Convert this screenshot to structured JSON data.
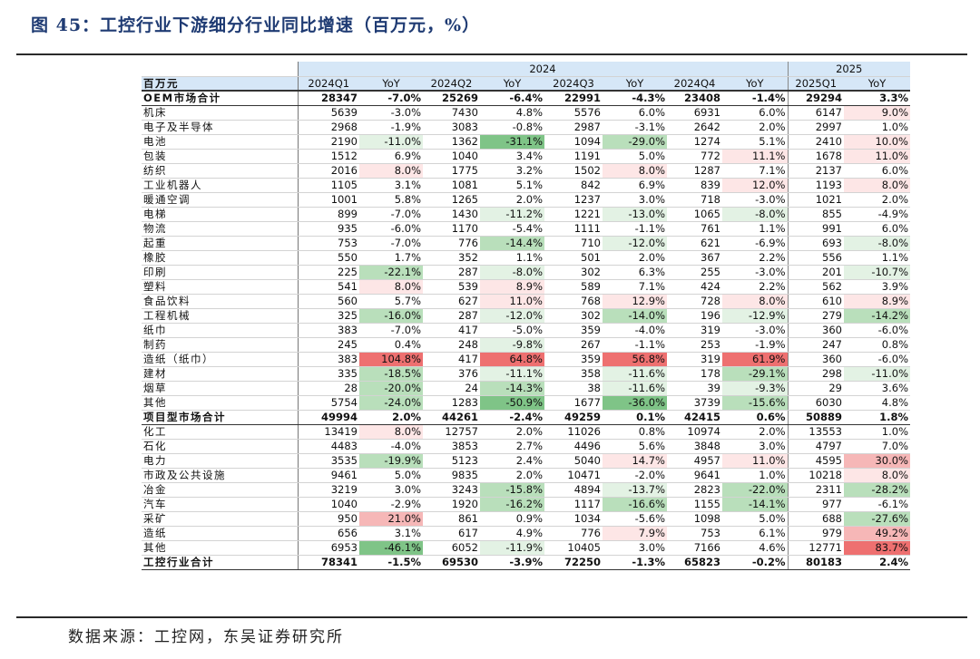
{
  "title": "图 45：工控行业下游细分行业同比增速（百万元，%）",
  "source": "数据来源：工控网，东吴证券研究所",
  "table": {
    "year_labels": [
      "2024",
      "2025"
    ],
    "unit_label": "百万元",
    "column_headers": [
      "2024Q1",
      "YoY",
      "2024Q2",
      "YoY",
      "2024Q3",
      "YoY",
      "2024Q4",
      "YoY",
      "2025Q1",
      "YoY"
    ],
    "rows": [
      {
        "label": "OEM市场合计",
        "total": true,
        "cells": [
          "28347",
          "-7.0%",
          "25269",
          "-6.4%",
          "22991",
          "-4.3%",
          "23408",
          "-1.4%",
          "29294",
          "3.3%"
        ]
      },
      {
        "label": "机床",
        "cells": [
          "5639",
          "-3.0%",
          "7430",
          "4.8%",
          "5576",
          "6.0%",
          "6931",
          "6.0%",
          "6147",
          "9.0%"
        ]
      },
      {
        "label": "电子及半导体",
        "cells": [
          "2968",
          "-1.9%",
          "3083",
          "-0.8%",
          "2987",
          "-3.1%",
          "2642",
          "2.0%",
          "2997",
          "1.0%"
        ]
      },
      {
        "label": "电池",
        "cells": [
          "2190",
          "-11.0%",
          "1362",
          "-31.1%",
          "1094",
          "-29.0%",
          "1274",
          "5.1%",
          "2410",
          "10.0%"
        ]
      },
      {
        "label": "包装",
        "cells": [
          "1512",
          "6.9%",
          "1040",
          "3.4%",
          "1191",
          "5.0%",
          "772",
          "11.1%",
          "1678",
          "11.0%"
        ]
      },
      {
        "label": "纺织",
        "cells": [
          "2016",
          "8.0%",
          "1775",
          "3.2%",
          "1502",
          "8.0%",
          "1287",
          "7.1%",
          "2137",
          "6.0%"
        ]
      },
      {
        "label": "工业机器人",
        "cells": [
          "1105",
          "3.1%",
          "1081",
          "5.1%",
          "842",
          "6.9%",
          "839",
          "12.0%",
          "1193",
          "8.0%"
        ]
      },
      {
        "label": "暖通空调",
        "cells": [
          "1001",
          "5.8%",
          "1265",
          "2.0%",
          "1237",
          "3.0%",
          "718",
          "-3.0%",
          "1021",
          "2.0%"
        ]
      },
      {
        "label": "电梯",
        "cells": [
          "899",
          "-7.0%",
          "1430",
          "-11.2%",
          "1221",
          "-13.0%",
          "1065",
          "-8.0%",
          "855",
          "-4.9%"
        ]
      },
      {
        "label": "物流",
        "cells": [
          "935",
          "-6.0%",
          "1170",
          "-5.4%",
          "1111",
          "-1.1%",
          "761",
          "1.1%",
          "991",
          "6.0%"
        ]
      },
      {
        "label": "起重",
        "cells": [
          "753",
          "-7.0%",
          "776",
          "-14.4%",
          "710",
          "-12.0%",
          "621",
          "-6.9%",
          "693",
          "-8.0%"
        ]
      },
      {
        "label": "橡胶",
        "cells": [
          "550",
          "1.7%",
          "352",
          "1.1%",
          "501",
          "2.0%",
          "367",
          "2.2%",
          "556",
          "1.1%"
        ]
      },
      {
        "label": "印刷",
        "cells": [
          "225",
          "-22.1%",
          "287",
          "-8.0%",
          "302",
          "6.3%",
          "255",
          "-3.0%",
          "201",
          "-10.7%"
        ]
      },
      {
        "label": "塑料",
        "cells": [
          "541",
          "8.0%",
          "539",
          "8.9%",
          "589",
          "7.1%",
          "424",
          "2.2%",
          "562",
          "3.9%"
        ]
      },
      {
        "label": "食品饮料",
        "cells": [
          "560",
          "5.7%",
          "627",
          "11.0%",
          "768",
          "12.9%",
          "728",
          "8.0%",
          "610",
          "8.9%"
        ]
      },
      {
        "label": "工程机械",
        "cells": [
          "325",
          "-16.0%",
          "287",
          "-12.0%",
          "302",
          "-14.0%",
          "196",
          "-12.9%",
          "279",
          "-14.2%"
        ]
      },
      {
        "label": "纸巾",
        "cells": [
          "383",
          "-7.0%",
          "417",
          "-5.0%",
          "359",
          "-4.0%",
          "319",
          "-3.0%",
          "360",
          "-6.0%"
        ]
      },
      {
        "label": "制药",
        "cells": [
          "245",
          "0.4%",
          "248",
          "-9.8%",
          "267",
          "-1.1%",
          "253",
          "-1.9%",
          "247",
          "0.8%"
        ]
      },
      {
        "label": "造纸（纸巾）",
        "cells": [
          "383",
          "104.8%",
          "417",
          "64.8%",
          "359",
          "56.8%",
          "319",
          "61.9%",
          "360",
          "-6.0%"
        ]
      },
      {
        "label": "建材",
        "cells": [
          "335",
          "-18.5%",
          "376",
          "-11.1%",
          "358",
          "-11.6%",
          "178",
          "-29.1%",
          "298",
          "-11.0%"
        ]
      },
      {
        "label": "烟草",
        "cells": [
          "28",
          "-20.0%",
          "24",
          "-14.3%",
          "38",
          "-11.6%",
          "39",
          "-9.3%",
          "29",
          "3.6%"
        ]
      },
      {
        "label": "其他",
        "cells": [
          "5754",
          "-24.0%",
          "1283",
          "-50.9%",
          "1677",
          "-36.0%",
          "3739",
          "-15.6%",
          "6030",
          "4.8%"
        ]
      },
      {
        "label": "项目型市场合计",
        "total": true,
        "cells": [
          "49994",
          "2.0%",
          "44261",
          "-2.4%",
          "49259",
          "0.1%",
          "42415",
          "0.6%",
          "50889",
          "1.8%"
        ]
      },
      {
        "label": "化工",
        "cells": [
          "13419",
          "8.0%",
          "12757",
          "2.0%",
          "11026",
          "0.8%",
          "10974",
          "2.0%",
          "13553",
          "1.0%"
        ]
      },
      {
        "label": "石化",
        "cells": [
          "4483",
          "-4.0%",
          "3853",
          "2.7%",
          "4496",
          "5.6%",
          "3848",
          "3.0%",
          "4797",
          "7.0%"
        ]
      },
      {
        "label": "电力",
        "cells": [
          "3535",
          "-19.9%",
          "5123",
          "2.4%",
          "5040",
          "14.7%",
          "4957",
          "11.0%",
          "4595",
          "30.0%"
        ]
      },
      {
        "label": "市政及公共设施",
        "cells": [
          "9461",
          "5.0%",
          "9835",
          "2.0%",
          "10471",
          "-2.0%",
          "9641",
          "1.0%",
          "10218",
          "8.0%"
        ]
      },
      {
        "label": "冶金",
        "cells": [
          "3219",
          "3.0%",
          "3243",
          "-15.8%",
          "4894",
          "-13.7%",
          "2823",
          "-22.0%",
          "2311",
          "-28.2%"
        ]
      },
      {
        "label": "汽车",
        "cells": [
          "1040",
          "-2.9%",
          "1920",
          "-16.2%",
          "1117",
          "-16.6%",
          "1155",
          "-14.1%",
          "977",
          "-6.1%"
        ]
      },
      {
        "label": "采矿",
        "cells": [
          "950",
          "21.0%",
          "861",
          "0.9%",
          "1034",
          "-5.6%",
          "1098",
          "5.0%",
          "688",
          "-27.6%"
        ]
      },
      {
        "label": "造纸",
        "cells": [
          "656",
          "3.1%",
          "617",
          "4.9%",
          "776",
          "7.9%",
          "753",
          "6.1%",
          "979",
          "49.2%"
        ]
      },
      {
        "label": "其他",
        "cells": [
          "6953",
          "-46.1%",
          "6052",
          "-11.9%",
          "10405",
          "3.0%",
          "7166",
          "4.6%",
          "12771",
          "83.7%"
        ]
      },
      {
        "label": "工控行业合计",
        "total": true,
        "cells": [
          "78341",
          "-1.5%",
          "69530",
          "-3.9%",
          "72250",
          "-1.3%",
          "65823",
          "-0.2%",
          "80183",
          "2.4%"
        ]
      }
    ]
  }
}
